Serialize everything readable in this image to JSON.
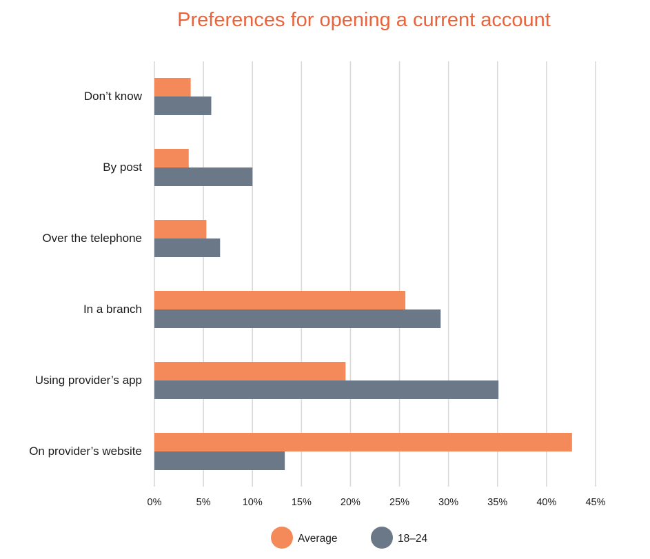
{
  "chart_data": {
    "type": "bar",
    "orientation": "horizontal",
    "title": "Preferences for opening a current account",
    "categories": [
      "Don’t know",
      "By post",
      "Over the telephone",
      "In a branch",
      "Using provider’s app",
      "On provider’s website"
    ],
    "series": [
      {
        "name": "Average",
        "color": "#f4895a",
        "values": [
          3.7,
          3.5,
          5.3,
          25.6,
          19.5,
          42.6
        ]
      },
      {
        "name": "18–24",
        "color": "#6b7888",
        "values": [
          5.8,
          10.0,
          6.7,
          29.2,
          35.1,
          13.3
        ]
      }
    ],
    "xlim": [
      0,
      45
    ],
    "xticks": [
      0,
      5,
      10,
      15,
      20,
      25,
      30,
      35,
      40,
      45
    ],
    "xtick_labels": [
      "0%",
      "5%",
      "10%",
      "15%",
      "20%",
      "25%",
      "30%",
      "35%",
      "40%",
      "45%"
    ],
    "xlabel": "",
    "ylabel": "",
    "grid": "vertical",
    "legend": "bottom-center"
  }
}
